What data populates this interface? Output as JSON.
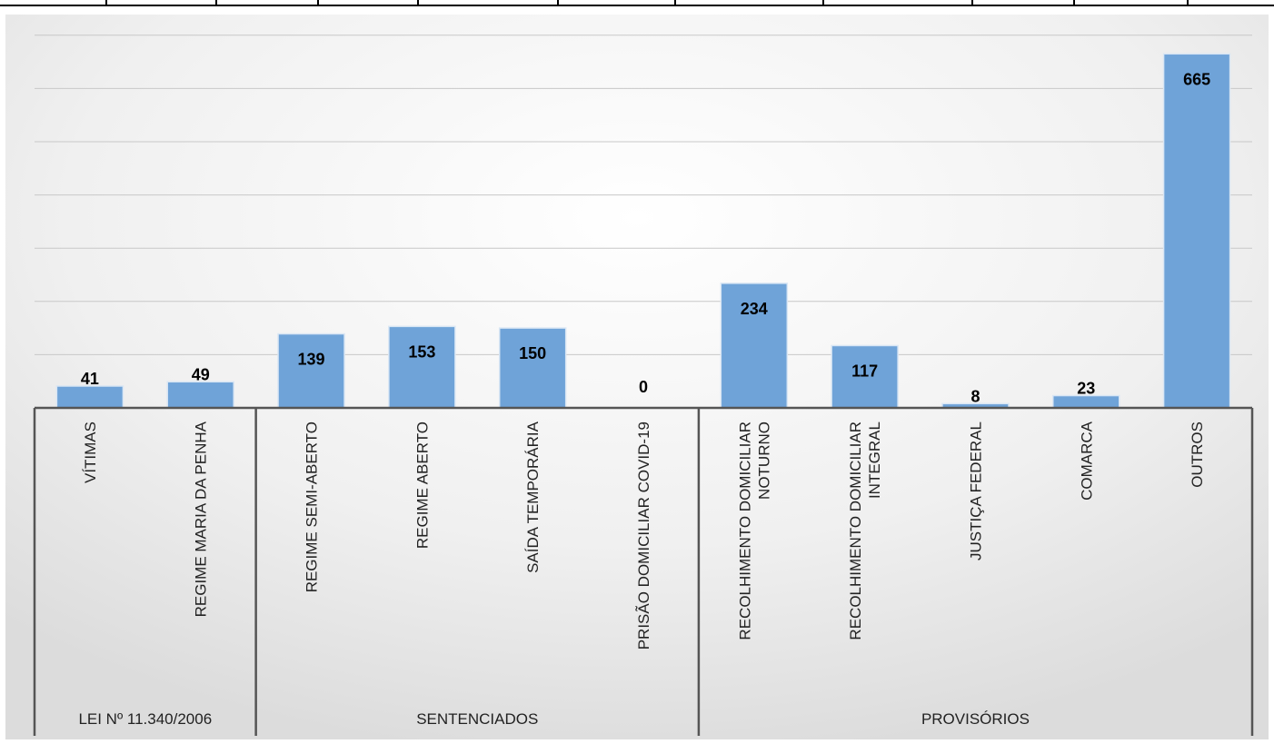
{
  "chart_data": {
    "type": "bar",
    "title": "",
    "xlabel": "",
    "ylabel": "",
    "ylim": [
      0,
      700
    ],
    "grid": true,
    "legend": "none",
    "bar_color": "#6fa3d8",
    "bar_edge_color": "#d9e6f4",
    "gridline_color": "#c8c8c8",
    "axis_color": "#555555",
    "categories": [
      [
        "VÍTIMAS"
      ],
      [
        "REGIME MARIA DA PENHA"
      ],
      [
        "REGIME SEMI-ABERTO"
      ],
      [
        "REGIME ABERTO"
      ],
      [
        "SAÍDA TEMPORÁRIA"
      ],
      [
        "PRISÃO DOMICILIAR COVID-19"
      ],
      [
        "RECOLHIMENTO DOMICILIAR",
        "NOTURNO"
      ],
      [
        "RECOLHIMENTO DOMICILIAR",
        "INTEGRAL"
      ],
      [
        "JUSTIÇA FEDERAL"
      ],
      [
        "COMARCA"
      ],
      [
        "OUTROS"
      ]
    ],
    "values": [
      41,
      49,
      139,
      153,
      150,
      0,
      234,
      117,
      8,
      23,
      665
    ],
    "groups": [
      {
        "label": "LEI Nº 11.340/2006",
        "start": 0,
        "end": 1
      },
      {
        "label": "SENTENCIADOS",
        "start": 2,
        "end": 5
      },
      {
        "label": "PROVISÓRIOS",
        "start": 6,
        "end": 10
      }
    ]
  }
}
